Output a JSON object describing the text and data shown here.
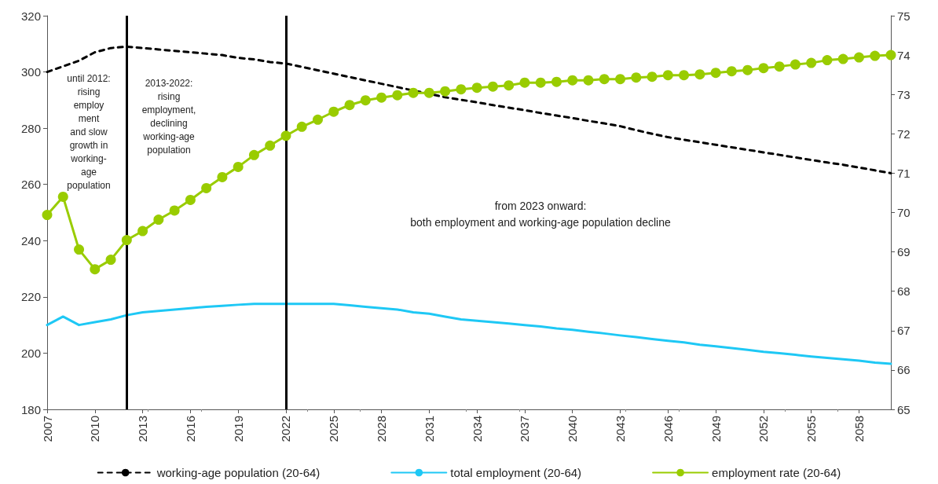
{
  "chart_data": {
    "type": "line",
    "x": [
      2007,
      2008,
      2009,
      2010,
      2011,
      2012,
      2013,
      2014,
      2015,
      2016,
      2017,
      2018,
      2019,
      2020,
      2021,
      2022,
      2023,
      2024,
      2025,
      2026,
      2027,
      2028,
      2029,
      2030,
      2031,
      2032,
      2033,
      2034,
      2035,
      2036,
      2037,
      2038,
      2039,
      2040,
      2041,
      2042,
      2043,
      2044,
      2045,
      2046,
      2047,
      2048,
      2049,
      2050,
      2051,
      2052,
      2053,
      2054,
      2055,
      2056,
      2057,
      2058,
      2059,
      2060
    ],
    "series": [
      {
        "name": "working-age population (20-64)",
        "color": "#000000",
        "line_style": "dashed",
        "marker": "none",
        "values": [
          300,
          302,
          304,
          307,
          308.5,
          309,
          308.5,
          308,
          307.5,
          307,
          306.5,
          306,
          305,
          304.5,
          303.5,
          303,
          301.8,
          300.6,
          299.4,
          298.2,
          297,
          295.8,
          294.6,
          293.4,
          292.2,
          291,
          290.1,
          289.2,
          288.2,
          287.3,
          286.4,
          285.4,
          284.5,
          283.6,
          282.6,
          281.7,
          280.7,
          279.3,
          278,
          276.8,
          275.9,
          275,
          274.1,
          273.2,
          272.3,
          271.4,
          270.5,
          269.6,
          268.7,
          267.8,
          267,
          266,
          265,
          264
        ]
      },
      {
        "name": "total employment (20-64)",
        "color": "#1ec8f5",
        "line_style": "solid",
        "marker": "none",
        "values": [
          210,
          213,
          210,
          211,
          212,
          213.5,
          214.5,
          215,
          215.5,
          216,
          216.5,
          216.8,
          217.2,
          217.5,
          217.5,
          217.5,
          217.5,
          217.5,
          217.5,
          217,
          216.5,
          216,
          215.5,
          214.5,
          214,
          213,
          212,
          211.5,
          211,
          210.5,
          210,
          209.5,
          208.8,
          208.3,
          207.6,
          207,
          206.3,
          205.7,
          205,
          204.4,
          203.8,
          203,
          202.4,
          201.8,
          201.2,
          200.5,
          200,
          199.4,
          198.8,
          198.3,
          197.8,
          197.3,
          196.6,
          196.2
        ]
      },
      {
        "name": "employment rate (20-64)",
        "color": "#99cc00",
        "line_style": "solid",
        "marker": "circle",
        "axis": "y2",
        "values": [
          69.94,
          70.4,
          69.06,
          68.56,
          68.8,
          69.3,
          69.53,
          69.82,
          70.05,
          70.32,
          70.62,
          70.9,
          71.16,
          71.46,
          71.7,
          71.95,
          72.18,
          72.36,
          72.56,
          72.73,
          72.85,
          72.92,
          72.98,
          73.04,
          73.04,
          73.08,
          73.13,
          73.17,
          73.2,
          73.23,
          73.3,
          73.3,
          73.32,
          73.36,
          73.36,
          73.39,
          73.39,
          73.43,
          73.45,
          73.49,
          73.49,
          73.51,
          73.55,
          73.59,
          73.62,
          73.67,
          73.71,
          73.76,
          73.8,
          73.87,
          73.9,
          73.94,
          73.98,
          74.0
        ]
      }
    ],
    "xlim": [
      2007,
      2060
    ],
    "xticks": [
      2007,
      2010,
      2013,
      2016,
      2019,
      2022,
      2025,
      2028,
      2031,
      2034,
      2037,
      2040,
      2043,
      2046,
      2049,
      2052,
      2055,
      2058
    ],
    "ylim": [
      180,
      320
    ],
    "yticks": [
      180,
      200,
      220,
      240,
      260,
      280,
      300,
      320
    ],
    "y2lim": [
      65,
      75
    ],
    "y2ticks": [
      65,
      66,
      67,
      68,
      69,
      70,
      71,
      72,
      73,
      74,
      75
    ],
    "ref_lines": [
      {
        "axis": "x",
        "value": 2012,
        "color": "#000000"
      },
      {
        "axis": "x",
        "value": 2022,
        "color": "#000000"
      }
    ],
    "annotations": [
      "until 2012:\nrising\nemploy\nment\nand slow\ngrowth in\nworking-\nage\npopulation",
      "2013-2022:\nrising\nemployment,\ndeclining\nworking-age\npopulation",
      "from 2023 onward:\nboth employment and working-age population decline"
    ],
    "grid": false,
    "legend": "bottom"
  }
}
